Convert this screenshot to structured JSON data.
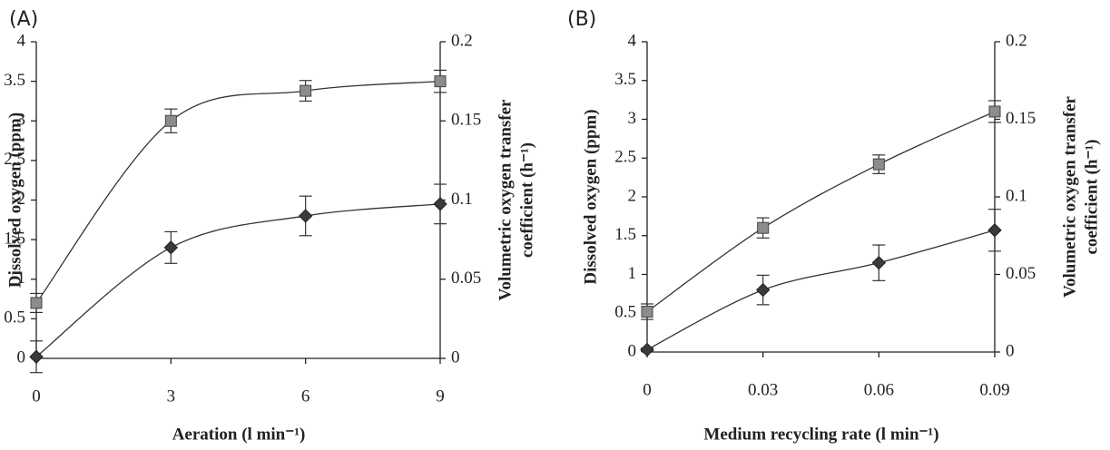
{
  "chart_data": [
    {
      "type": "line",
      "panel_label": "(A)",
      "x": [
        0,
        3,
        6,
        9
      ],
      "xlim": [
        0,
        9
      ],
      "xticks": [
        0,
        3,
        6,
        9
      ],
      "x_label": "Aeration (l min⁻¹)",
      "y_label": "Dissolved oxygen (ppm)",
      "y2_label": [
        "Volumetric oxygen transfer",
        "coefficient (h⁻¹)"
      ],
      "ylim": [
        0,
        4
      ],
      "yticks": [
        0,
        0.5,
        1,
        1.5,
        2,
        2.5,
        3,
        3.5,
        4
      ],
      "y2lim": [
        0,
        0.2
      ],
      "y2ticks": [
        0,
        0.05,
        0.1,
        0.15,
        0.2
      ],
      "series": [
        {
          "marker": "square",
          "color": "#8c8c8c",
          "values": [
            0.7,
            3.0,
            3.38,
            3.5
          ],
          "errors": [
            0.12,
            0.15,
            0.13,
            0.14
          ]
        },
        {
          "marker": "diamond",
          "color": "#3a3a3a",
          "axis": "y2",
          "values": [
            0.001,
            0.07,
            0.09,
            0.0975
          ],
          "errors": [
            0.01,
            0.01,
            0.0125,
            0.0125
          ]
        }
      ]
    },
    {
      "type": "line",
      "panel_label": "(B)",
      "x": [
        0,
        0.03,
        0.06,
        0.09
      ],
      "xlim": [
        0,
        0.09
      ],
      "xticks": [
        0,
        0.03,
        0.06,
        0.09
      ],
      "x_label": "Medium recycling rate (l min⁻¹)",
      "y_label": "Dissolved oxygen (ppm)",
      "y2_label": [
        "Volumetric oxygen transfer",
        "coefficient (h⁻¹)"
      ],
      "ylim": [
        0,
        4
      ],
      "yticks": [
        0,
        0.5,
        1,
        1.5,
        2,
        2.5,
        3,
        3.5,
        4
      ],
      "y2lim": [
        0,
        0.2
      ],
      "y2ticks": [
        0,
        0.05,
        0.1,
        0.15,
        0.2
      ],
      "series": [
        {
          "marker": "square",
          "color": "#8c8c8c",
          "values": [
            0.52,
            1.6,
            2.42,
            3.1
          ],
          "errors": [
            0.1,
            0.13,
            0.12,
            0.14
          ]
        },
        {
          "marker": "diamond",
          "color": "#3a3a3a",
          "axis": "y2",
          "values": [
            0.0015,
            0.04,
            0.0575,
            0.0785
          ],
          "errors": [
            0.001,
            0.0095,
            0.0115,
            0.0135
          ]
        }
      ]
    }
  ]
}
